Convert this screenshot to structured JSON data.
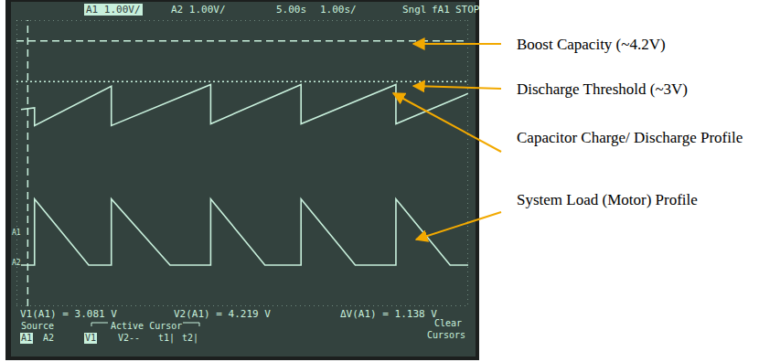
{
  "chart_data": {
    "type": "line",
    "xlim": [
      0,
      10
    ],
    "xticks": [
      0,
      1,
      2,
      3,
      4,
      5,
      6,
      7,
      8,
      9,
      10
    ],
    "ylim": [
      -3.2,
      4.8
    ],
    "yticks": [
      -3.2,
      -2.2,
      -1.2,
      -0.2,
      0.8,
      1.8,
      2.8,
      3.8,
      4.8
    ],
    "grid": true,
    "tick_labels": false,
    "series": [
      {
        "name": "A1",
        "color": "#c8f0dc",
        "x": [
          0.1,
          0.4,
          0.4,
          2.1,
          2.1,
          4.3,
          4.3,
          6.3,
          6.3,
          8.4,
          8.4,
          10
        ],
        "values": [
          2.3,
          2.35,
          1.85,
          2.95,
          1.85,
          3.0,
          1.9,
          3.0,
          1.9,
          3.0,
          1.9,
          2.75
        ]
      },
      {
        "name": "A2",
        "color": "#c8f0dc",
        "x": [
          0.1,
          0.4,
          0.4,
          1.6,
          2.1,
          2.1,
          3.4,
          4.3,
          4.3,
          5.5,
          6.3,
          6.3,
          7.5,
          8.4,
          8.4,
          9.6,
          10
        ],
        "values": [
          -2.05,
          -2.05,
          -0.2,
          -2.05,
          -2.05,
          -0.2,
          -2.05,
          -2.05,
          -0.2,
          -2.05,
          -2.05,
          -0.2,
          -2.05,
          -2.05,
          -0.2,
          -2.05,
          -2.05
        ]
      }
    ],
    "cursors": [
      {
        "value": 4.219,
        "line_style": "dashed"
      },
      {
        "value": 3.081,
        "line_style": "dotted"
      }
    ],
    "x_cursors": [
      {
        "value": 0.25,
        "line_style": "dashed"
      }
    ],
    "header": [
      "A1 1.00V/",
      "A2 1.00V/",
      "5.00s",
      "1.00s/",
      "Sngl",
      "fA1",
      "STOP"
    ],
    "readouts": [
      "V1(A1) = 3.081 V",
      "V2(A1) = 4.219 V",
      "ΔV(A1) = 1.138 V"
    ],
    "softkeys": [
      "Source",
      "Active Cursor",
      "A1",
      "A2",
      "V1",
      "V2--",
      "t1|",
      "t2|",
      "Clear",
      "Cursors"
    ],
    "trace_markers": [
      "A1",
      "A2"
    ],
    "annotations": [
      "Boost Capacity (~4.2V)",
      "Discharge Threshold (~3V)",
      "Capacitor Charge/ Discharge Profile",
      "System Load (Motor) Profile"
    ]
  }
}
